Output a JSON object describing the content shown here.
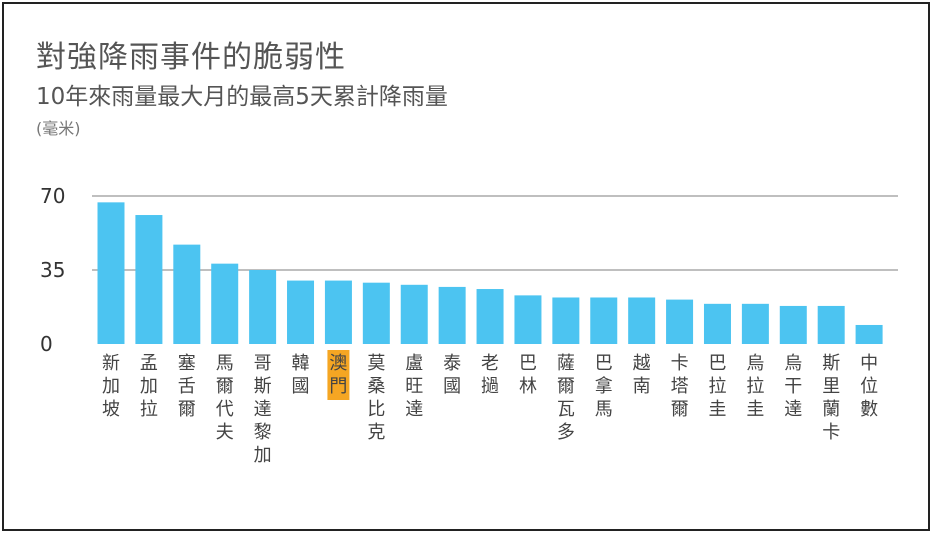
{
  "title": "對強降雨事件的脆弱性",
  "subtitle": "10年來雨量最大月的最高5天累計降雨量",
  "unit": "(毫米)",
  "colors": {
    "bar": "#4CC4F1",
    "grid": "#BFBFBF",
    "highlight": "#F5A623"
  },
  "chart_data": {
    "type": "bar",
    "title": "對強降雨事件的脆弱性",
    "subtitle": "10年來雨量最大月的最高5天累計降雨量",
    "ylabel": "(毫米)",
    "ylim": [
      0,
      70
    ],
    "yticks": [
      0,
      35,
      70
    ],
    "grid": true,
    "highlight_category": "澳門",
    "categories": [
      "新加坡",
      "孟加拉",
      "塞舌爾",
      "馬爾代夫",
      "哥斯達黎加",
      "韓國",
      "澳門",
      "莫桑比克",
      "盧旺達",
      "泰國",
      "老撾",
      "巴林",
      "薩爾瓦多",
      "巴拿馬",
      "越南",
      "卡塔爾",
      "巴拉圭",
      "烏拉圭",
      "烏干達",
      "斯里蘭卡",
      "中位數"
    ],
    "values": [
      67,
      61,
      47,
      38,
      35,
      30,
      30,
      29,
      28,
      27,
      26,
      23,
      22,
      22,
      22,
      21,
      19,
      19,
      18,
      18,
      9
    ]
  }
}
